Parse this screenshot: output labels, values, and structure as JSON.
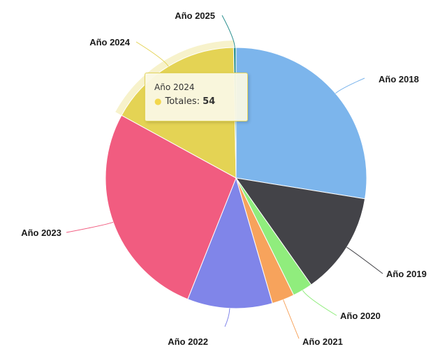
{
  "chart_data": {
    "type": "pie",
    "series_name": "Totales",
    "categories": [
      "Año 2018",
      "Año 2019",
      "Año 2020",
      "Año 2021",
      "Año 2022",
      "Año 2023",
      "Año 2024",
      "Año 2025"
    ],
    "values": [
      89,
      41,
      8,
      9,
      34,
      87,
      54,
      1
    ],
    "colors": [
      "#7cb5ec",
      "#434348",
      "#90ed7d",
      "#f7a35c",
      "#8085e9",
      "#f15c80",
      "#e4d354",
      "#2b908f"
    ],
    "start_angle_deg": 0,
    "direction": "clockwise",
    "highlighted": "Año 2024"
  },
  "tooltip": {
    "title": "Año 2024",
    "label": "Totales: ",
    "value": "54"
  }
}
